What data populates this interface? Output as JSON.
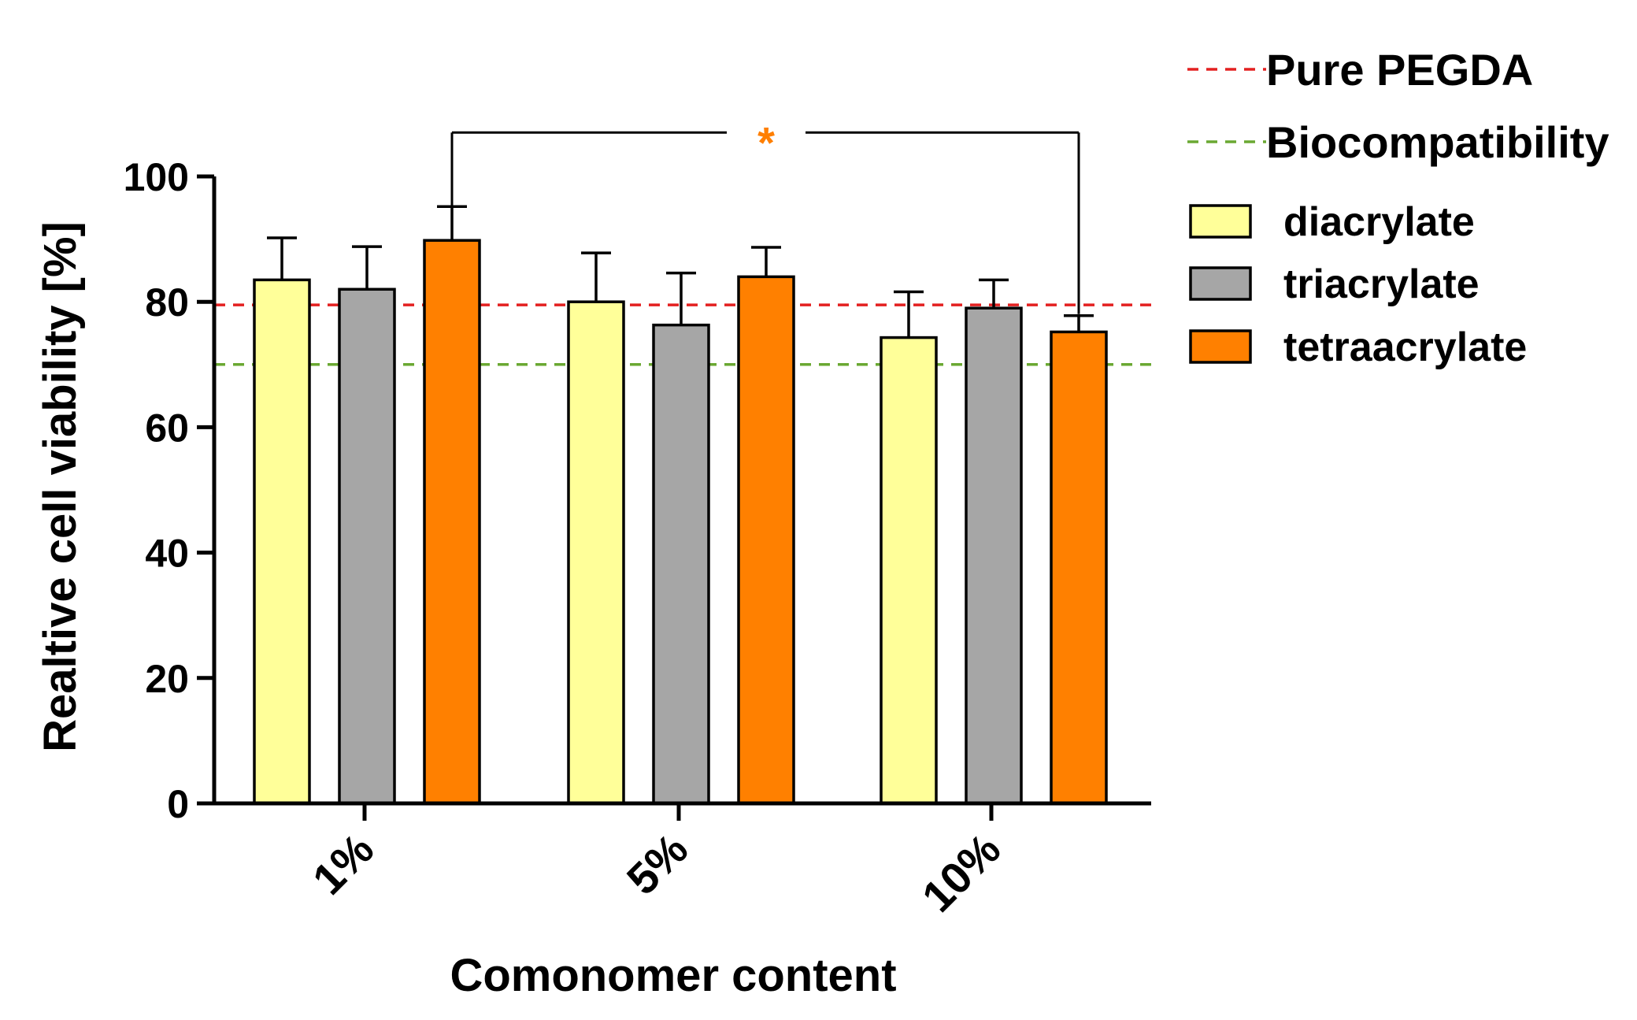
{
  "chart_data": {
    "type": "bar",
    "xlabel": "Comonomer content",
    "ylabel": "Realtive cell viability [%]",
    "ylim": [
      0,
      100
    ],
    "yticks": [
      0,
      20,
      40,
      60,
      80,
      100
    ],
    "categories": [
      "1%",
      "5%",
      "10%"
    ],
    "series": [
      {
        "name": "diacrylate",
        "color": "#ffff99",
        "values": [
          83.5,
          80.0,
          74.3
        ],
        "errors": [
          6.7,
          7.8,
          7.3
        ]
      },
      {
        "name": "triacrylate",
        "color": "#a6a6a6",
        "values": [
          82.0,
          76.3,
          79.0
        ],
        "errors": [
          6.8,
          8.3,
          4.5
        ]
      },
      {
        "name": "tetraacrylate",
        "color": "#ff8000",
        "values": [
          89.8,
          84.0,
          75.2
        ],
        "errors": [
          5.4,
          4.7,
          2.6
        ]
      }
    ],
    "reference_lines": [
      {
        "name": "Pure PEGDA",
        "value": 79.5,
        "color": "#e32020",
        "style": "dashed"
      },
      {
        "name": "Biocompatibility",
        "value": 70.0,
        "color": "#6aa832",
        "style": "dashed"
      }
    ],
    "significance": [
      {
        "from": {
          "category": "1%",
          "series": "tetraacrylate"
        },
        "to": {
          "category": "10%",
          "series": "tetraacrylate"
        },
        "label": "*",
        "label_color": "#ff7f00"
      }
    ],
    "legend_placement": "top-right",
    "grid": false
  }
}
